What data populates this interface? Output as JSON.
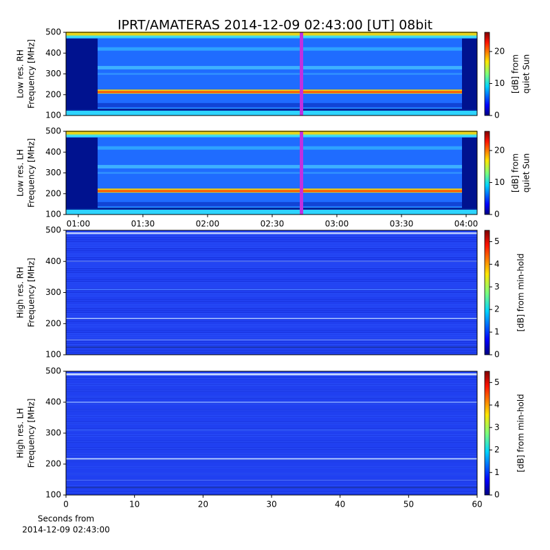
{
  "title": "IPRT/AMATERAS 2014-12-09 02:43:00 [UT]   08bit",
  "chart_data": [
    {
      "type": "heatmap",
      "ylabel": [
        "Low res. RH",
        "Frequency [MHz]"
      ],
      "ylim": [
        100,
        500
      ],
      "yticks": [
        100,
        200,
        300,
        400,
        500
      ],
      "xlim": [
        54.3,
        245.1
      ],
      "colorbar_label": [
        "[dB] from",
        "quiet Sun"
      ],
      "clim": [
        0,
        26
      ],
      "cticks": [
        0,
        10,
        20
      ]
    },
    {
      "type": "heatmap",
      "ylabel": [
        "Low res. LH",
        "Frequency [MHz]"
      ],
      "ylim": [
        100,
        500
      ],
      "yticks": [
        100,
        200,
        300,
        400,
        500
      ],
      "xlim": [
        54.3,
        245.1
      ],
      "xticks": [
        {
          "value": 60,
          "label": "01:00"
        },
        {
          "value": 90,
          "label": "01:30"
        },
        {
          "value": 120,
          "label": "02:00"
        },
        {
          "value": 150,
          "label": "02:30"
        },
        {
          "value": 180,
          "label": "03:00"
        },
        {
          "value": 210,
          "label": "03:30"
        },
        {
          "value": 240,
          "label": "04:00"
        }
      ],
      "colorbar_label": [
        "[dB] from",
        "quiet Sun"
      ],
      "clim": [
        0,
        26
      ],
      "cticks": [
        0,
        10,
        20
      ]
    },
    {
      "type": "heatmap",
      "ylabel": [
        "High res. RH",
        "Frequency [MHz]"
      ],
      "ylim": [
        100,
        500
      ],
      "yticks": [
        100,
        200,
        300,
        400,
        500
      ],
      "xlim": [
        0,
        60
      ],
      "colorbar_label": [
        "[dB] from min-hold"
      ],
      "clim": [
        0,
        5.5
      ],
      "cticks": [
        0,
        1,
        2,
        3,
        4,
        5
      ]
    },
    {
      "type": "heatmap",
      "ylabel": [
        "High res. LH",
        "Frequency [MHz]"
      ],
      "ylim": [
        100,
        500
      ],
      "yticks": [
        100,
        200,
        300,
        400,
        500
      ],
      "xlim": [
        0,
        60
      ],
      "xticks": [
        0,
        10,
        20,
        30,
        40,
        50,
        60
      ],
      "xlabel": [
        "Seconds from",
        "2014-12-09 02:43:00"
      ],
      "colorbar_label": [
        "[dB] from min-hold"
      ],
      "clim": [
        0,
        5.5
      ],
      "cticks": [
        0,
        1,
        2,
        3,
        4,
        5
      ]
    }
  ]
}
